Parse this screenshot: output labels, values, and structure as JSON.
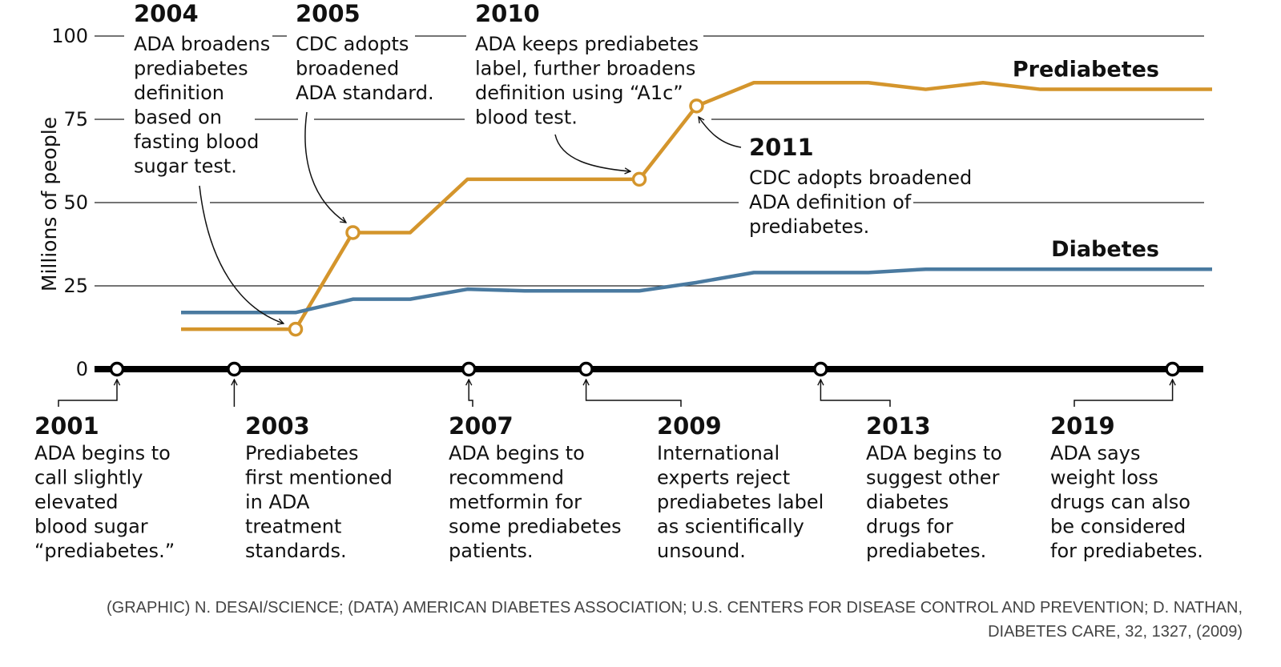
{
  "colors": {
    "prediabetes": "#d4952c",
    "diabetes": "#4a7aa0",
    "axis": "#000000",
    "grid": "#222222"
  },
  "chart_data": {
    "type": "line",
    "ylabel": "Millions of people",
    "ylim": [
      0,
      100
    ],
    "yticks": [
      "0",
      "25",
      "50",
      "75",
      "100"
    ],
    "x": [
      2002,
      2003,
      2004,
      2005,
      2006,
      2007,
      2008,
      2009,
      2010,
      2011,
      2012,
      2013,
      2014,
      2015,
      2016,
      2017,
      2018,
      2019,
      2020
    ],
    "series": [
      {
        "name": "Prediabetes",
        "values": [
          12,
          12,
          12,
          41,
          41,
          57,
          57,
          57,
          57,
          79,
          86,
          86,
          86,
          84,
          86,
          84,
          84,
          84,
          84
        ]
      },
      {
        "name": "Diabetes",
        "values": [
          17,
          17,
          17,
          21,
          21,
          24,
          23.5,
          23.5,
          23.5,
          26,
          29,
          29,
          29,
          30,
          30,
          30,
          30,
          30,
          30
        ]
      }
    ],
    "markers": [
      {
        "series": "Prediabetes",
        "x": 2004,
        "y": 12
      },
      {
        "series": "Prediabetes",
        "x": 2005,
        "y": 41
      },
      {
        "series": "Prediabetes",
        "x": 2010,
        "y": 57
      },
      {
        "series": "Prediabetes",
        "x": 2011,
        "y": 79
      }
    ],
    "top_annotations": [
      {
        "year": "2004",
        "lines": [
          "ADA broadens",
          "prediabetes",
          "definition",
          "based on",
          "fasting blood",
          "sugar test."
        ]
      },
      {
        "year": "2005",
        "lines": [
          "CDC adopts",
          "broadened",
          "ADA standard."
        ]
      },
      {
        "year": "2010",
        "lines": [
          "ADA keeps prediabetes",
          "label, further broadens",
          "definition using “A1c”",
          "blood test."
        ]
      },
      {
        "year": "2011",
        "lines": [
          "CDC adopts broadened",
          "ADA definition of",
          "prediabetes."
        ]
      }
    ],
    "timeline": [
      {
        "year": "2001",
        "lines": [
          "ADA begins to",
          "call slightly",
          "elevated",
          "blood sugar",
          "“prediabetes.”"
        ]
      },
      {
        "year": "2003",
        "lines": [
          "Prediabetes",
          "first mentioned",
          "in ADA",
          "treatment",
          "standards."
        ]
      },
      {
        "year": "2007",
        "lines": [
          "ADA begins to",
          "recommend",
          "metformin for",
          "some prediabetes",
          "patients."
        ]
      },
      {
        "year": "2009",
        "lines": [
          "International",
          "experts reject",
          "prediabetes label",
          "as scientifically",
          "unsound."
        ]
      },
      {
        "year": "2013",
        "lines": [
          "ADA begins to",
          "suggest other",
          "diabetes",
          "drugs for",
          "prediabetes."
        ]
      },
      {
        "year": "2019",
        "lines": [
          "ADA says",
          "weight loss",
          "drugs can also",
          "be considered",
          "for prediabetes."
        ]
      }
    ]
  },
  "credit": {
    "line1": "(GRAPHIC) N. DESAI/SCIENCE; (DATA) AMERICAN DIABETES ASSOCIATION; U.S. CENTERS FOR DISEASE CONTROL AND PREVENTION; D. NATHAN,",
    "line2": "DIABETES CARE, 32, 1327, (2009)"
  }
}
